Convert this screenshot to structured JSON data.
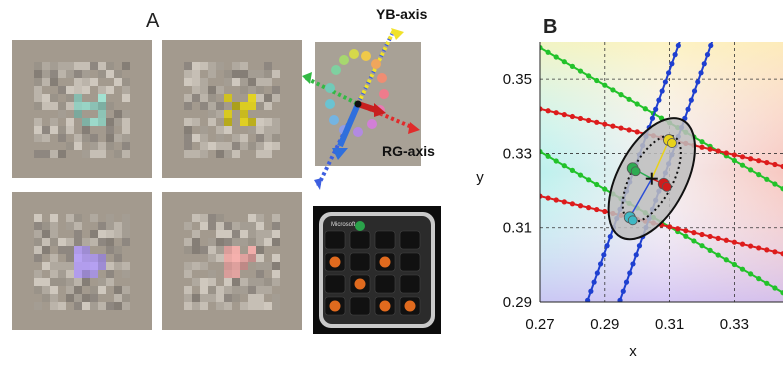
{
  "panel_a": {
    "label": "A",
    "stimuli": [
      {
        "name": "cyan",
        "target_color": "#8fc7b9"
      },
      {
        "name": "yellow",
        "target_color": "#c9bb1f"
      },
      {
        "name": "purple",
        "target_color": "#a18ed6"
      },
      {
        "name": "pink",
        "target_color": "#d79b98"
      }
    ],
    "diagram": {
      "yb_axis_label": "YB-axis",
      "rg_axis_label": "RG-axis"
    },
    "keypad": {
      "brand": "Microsoft"
    }
  },
  "panel_b": {
    "label": "B"
  },
  "chart_data": {
    "type": "scatter",
    "xlabel": "x",
    "ylabel": "y",
    "xlim": [
      0.27,
      0.345
    ],
    "ylim": [
      0.29,
      0.36
    ],
    "xticks": [
      0.27,
      0.29,
      0.31,
      0.33
    ],
    "yticks": [
      0.29,
      0.31,
      0.33,
      0.35
    ],
    "grid": true,
    "series": [
      {
        "color": "#22c22a",
        "lines": [
          {
            "x": [
              0.27,
              0.345
            ],
            "y": [
              0.3585,
              0.3205
            ]
          },
          {
            "x": [
              0.27,
              0.345
            ],
            "y": [
              0.3305,
              0.2925
            ]
          }
        ]
      },
      {
        "color": "#dd1c1c",
        "lines": [
          {
            "x": [
              0.27,
              0.345
            ],
            "y": [
              0.342,
              0.3265
            ]
          },
          {
            "x": [
              0.27,
              0.345
            ],
            "y": [
              0.3185,
              0.303
            ]
          }
        ]
      },
      {
        "color": "#1e3fd0",
        "lines": [
          {
            "x": [
              0.2937,
              0.3237
            ],
            "y": [
              0.288,
              0.3615
            ]
          },
          {
            "x": [
              0.2837,
              0.3137
            ],
            "y": [
              0.288,
              0.3615
            ]
          }
        ]
      }
    ],
    "ellipse_outer": {
      "cx": 0.3045,
      "cy": 0.3232,
      "rx": 0.0105,
      "ry": 0.0178,
      "rotate_deg": 28
    },
    "ellipse_inner": {
      "cx": 0.3045,
      "cy": 0.3232,
      "rx": 0.0065,
      "ry": 0.0128,
      "rotate_deg": 28
    },
    "centroid": {
      "x": 0.3045,
      "y": 0.3232
    },
    "data_points": [
      {
        "x": 0.3098,
        "y": 0.3336,
        "color": "#e8d21a"
      },
      {
        "x": 0.2986,
        "y": 0.326,
        "color": "#2eab52"
      },
      {
        "x": 0.3082,
        "y": 0.3218,
        "color": "#d11b1b"
      },
      {
        "x": 0.2977,
        "y": 0.3128,
        "color": "#3fb8c4"
      }
    ]
  }
}
